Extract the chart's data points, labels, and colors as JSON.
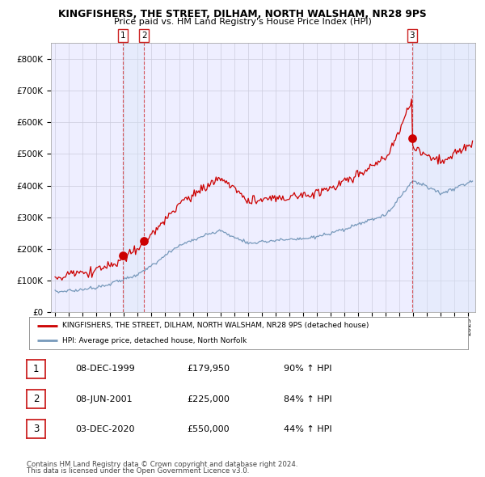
{
  "title": "KINGFISHERS, THE STREET, DILHAM, NORTH WALSHAM, NR28 9PS",
  "subtitle": "Price paid vs. HM Land Registry's House Price Index (HPI)",
  "legend_line1": "KINGFISHERS, THE STREET, DILHAM, NORTH WALSHAM, NR28 9PS (detached house)",
  "legend_line2": "HPI: Average price, detached house, North Norfolk",
  "transactions": [
    {
      "label": "1",
      "date": "08-DEC-1999",
      "price": 179950,
      "pct": "90%",
      "dir": "↑"
    },
    {
      "label": "2",
      "date": "08-JUN-2001",
      "price": 225000,
      "pct": "84%",
      "dir": "↑"
    },
    {
      "label": "3",
      "date": "03-DEC-2020",
      "price": 550000,
      "pct": "44%",
      "dir": "↑"
    }
  ],
  "footer1": "Contains HM Land Registry data © Crown copyright and database right 2024.",
  "footer2": "This data is licensed under the Open Government Licence v3.0.",
  "red_color": "#cc0000",
  "blue_color": "#7799bb",
  "background_color": "#ffffff",
  "plot_bg_color": "#eeeeff",
  "grid_color": "#ccccdd",
  "shade_color": "#d8e8f8",
  "ylim": [
    0,
    850000
  ],
  "yticks": [
    0,
    100000,
    200000,
    300000,
    400000,
    500000,
    600000,
    700000,
    800000
  ],
  "xlim_start": 1994.7,
  "xlim_end": 2025.5,
  "t1_year": 1999.917,
  "t2_year": 2001.458,
  "t3_year": 2020.917,
  "t1_price": 179950,
  "t2_price": 225000,
  "t3_price": 550000
}
